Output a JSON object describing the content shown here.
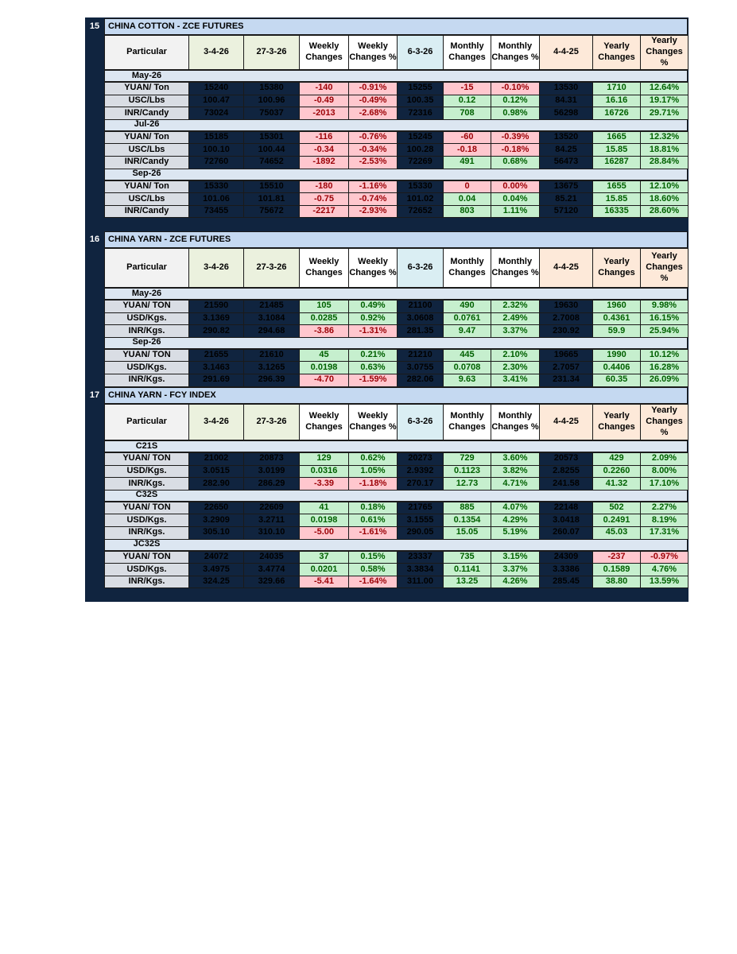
{
  "sections": [
    {
      "number": "15",
      "title": "CHINA COTTON - ZCE FUTURES",
      "header": [
        "Particular",
        "3-4-26",
        "27-3-26",
        "Weekly Changes",
        "Weekly Changes %",
        "6-3-26",
        "Monthly Changes",
        "Monthly Changes %",
        "4-4-25",
        "Yearly Changes",
        "Yearly Changes %"
      ],
      "groups": [
        {
          "label": "May-26",
          "rows": [
            [
              "YUAN/ Ton",
              "15240",
              "15380",
              "-140",
              "-0.91%",
              "15255",
              "-15",
              "-0.10%",
              "13530",
              "1710",
              "12.64%"
            ],
            [
              "USC/Lbs",
              "100.47",
              "100.96",
              "-0.49",
              "-0.49%",
              "100.35",
              "0.12",
              "0.12%",
              "84.31",
              "16.16",
              "19.17%"
            ],
            [
              "INR/Candy",
              "73024",
              "75037",
              "-2013",
              "-2.68%",
              "72316",
              "708",
              "0.98%",
              "56298",
              "16726",
              "29.71%"
            ]
          ]
        },
        {
          "label": "Jul-26",
          "rows": [
            [
              "YUAN/ Ton",
              "15185",
              "15301",
              "-116",
              "-0.76%",
              "15245",
              "-60",
              "-0.39%",
              "13520",
              "1665",
              "12.32%"
            ],
            [
              "USC/Lbs",
              "100.10",
              "100.44",
              "-0.34",
              "-0.34%",
              "100.28",
              "-0.18",
              "-0.18%",
              "84.25",
              "15.85",
              "18.81%"
            ],
            [
              "INR/Candy",
              "72760",
              "74652",
              "-1892",
              "-2.53%",
              "72269",
              "491",
              "0.68%",
              "56473",
              "16287",
              "28.84%"
            ]
          ]
        },
        {
          "label": "Sep-26",
          "rows": [
            [
              "YUAN/ Ton",
              "15330",
              "15510",
              "-180",
              "-1.16%",
              "15330",
              "0",
              "0.00%",
              "13675",
              "1655",
              "12.10%"
            ],
            [
              "USC/Lbs",
              "101.06",
              "101.81",
              "-0.75",
              "-0.74%",
              "101.02",
              "0.04",
              "0.04%",
              "85.21",
              "15.85",
              "18.60%"
            ],
            [
              "INR/Candy",
              "73455",
              "75672",
              "-2217",
              "-2.93%",
              "72652",
              "803",
              "1.11%",
              "57120",
              "16335",
              "28.60%"
            ]
          ]
        }
      ]
    },
    {
      "number": "16",
      "title": "CHINA YARN - ZCE FUTURES",
      "header": [
        "Particular",
        "3-4-26",
        "27-3-26",
        "Weekly Changes",
        "Weekly Changes %",
        "6-3-26",
        "Monthly Changes",
        "Monthly Changes %",
        "4-4-25",
        "Yearly Changes",
        "Yearly Changes %"
      ],
      "groups": [
        {
          "label": "May-26",
          "rows": [
            [
              "YUAN/ TON",
              "21590",
              "21485",
              "105",
              "0.49%",
              "21100",
              "490",
              "2.32%",
              "19630",
              "1960",
              "9.98%"
            ],
            [
              "USD/Kgs.",
              "3.1369",
              "3.1084",
              "0.0285",
              "0.92%",
              "3.0608",
              "0.0761",
              "2.49%",
              "2.7008",
              "0.4361",
              "16.15%"
            ],
            [
              "INR/Kgs.",
              "290.82",
              "294.68",
              "-3.86",
              "-1.31%",
              "281.35",
              "9.47",
              "3.37%",
              "230.92",
              "59.9",
              "25.94%"
            ]
          ]
        },
        {
          "label": "Sep-26",
          "rows": [
            [
              "YUAN/ TON",
              "21655",
              "21610",
              "45",
              "0.21%",
              "21210",
              "445",
              "2.10%",
              "19665",
              "1990",
              "10.12%"
            ],
            [
              "USD/Kgs.",
              "3.1463",
              "3.1265",
              "0.0198",
              "0.63%",
              "3.0755",
              "0.0708",
              "2.30%",
              "2.7057",
              "0.4406",
              "16.28%"
            ],
            [
              "INR/Kgs.",
              "291.69",
              "296.39",
              "-4.70",
              "-1.59%",
              "282.06",
              "9.63",
              "3.41%",
              "231.34",
              "60.35",
              "26.09%"
            ]
          ]
        }
      ]
    },
    {
      "number": "17",
      "title": "CHINA YARN - FCY INDEX",
      "header": [
        "Particular",
        "3-4-26",
        "27-3-26",
        "Weekly Changes",
        "Weekly Changes %",
        "6-3-26",
        "Monthly Changes",
        "Monthly Changes %",
        "4-4-25",
        "Yearly Changes",
        "Yearly Changes %"
      ],
      "groups": [
        {
          "label": "C21S",
          "rows": [
            [
              "YUAN/ TON",
              "21002",
              "20873",
              "129",
              "0.62%",
              "20273",
              "729",
              "3.60%",
              "20573",
              "429",
              "2.09%"
            ],
            [
              "USD/Kgs.",
              "3.0515",
              "3.0199",
              "0.0316",
              "1.05%",
              "2.9392",
              "0.1123",
              "3.82%",
              "2.8255",
              "0.2260",
              "8.00%"
            ],
            [
              "INR/Kgs.",
              "282.90",
              "286.29",
              "-3.39",
              "-1.18%",
              "270.17",
              "12.73",
              "4.71%",
              "241.58",
              "41.32",
              "17.10%"
            ]
          ]
        },
        {
          "label": "C32S",
          "rows": [
            [
              "YUAN/ TON",
              "22650",
              "22609",
              "41",
              "0.18%",
              "21765",
              "885",
              "4.07%",
              "22148",
              "502",
              "2.27%"
            ],
            [
              "USD/Kgs.",
              "3.2909",
              "3.2711",
              "0.0198",
              "0.61%",
              "3.1555",
              "0.1354",
              "4.29%",
              "3.0418",
              "0.2491",
              "8.19%"
            ],
            [
              "INR/Kgs.",
              "305.10",
              "310.10",
              "-5.00",
              "-1.61%",
              "290.05",
              "15.05",
              "5.19%",
              "260.07",
              "45.03",
              "17.31%"
            ]
          ]
        },
        {
          "label": "JC32S",
          "rows": [
            [
              "YUAN/ TON",
              "24072",
              "24035",
              "37",
              "0.15%",
              "23337",
              "735",
              "3.15%",
              "24309",
              "-237",
              "-0.97%"
            ],
            [
              "USD/Kgs.",
              "3.4975",
              "3.4774",
              "0.0201",
              "0.58%",
              "3.3834",
              "0.1141",
              "3.37%",
              "3.3386",
              "0.1589",
              "4.76%"
            ],
            [
              "INR/Kgs.",
              "324.25",
              "329.66",
              "-5.41",
              "-1.64%",
              "311.00",
              "13.25",
              "4.26%",
              "285.45",
              "38.80",
              "13.59%"
            ]
          ]
        }
      ]
    }
  ]
}
